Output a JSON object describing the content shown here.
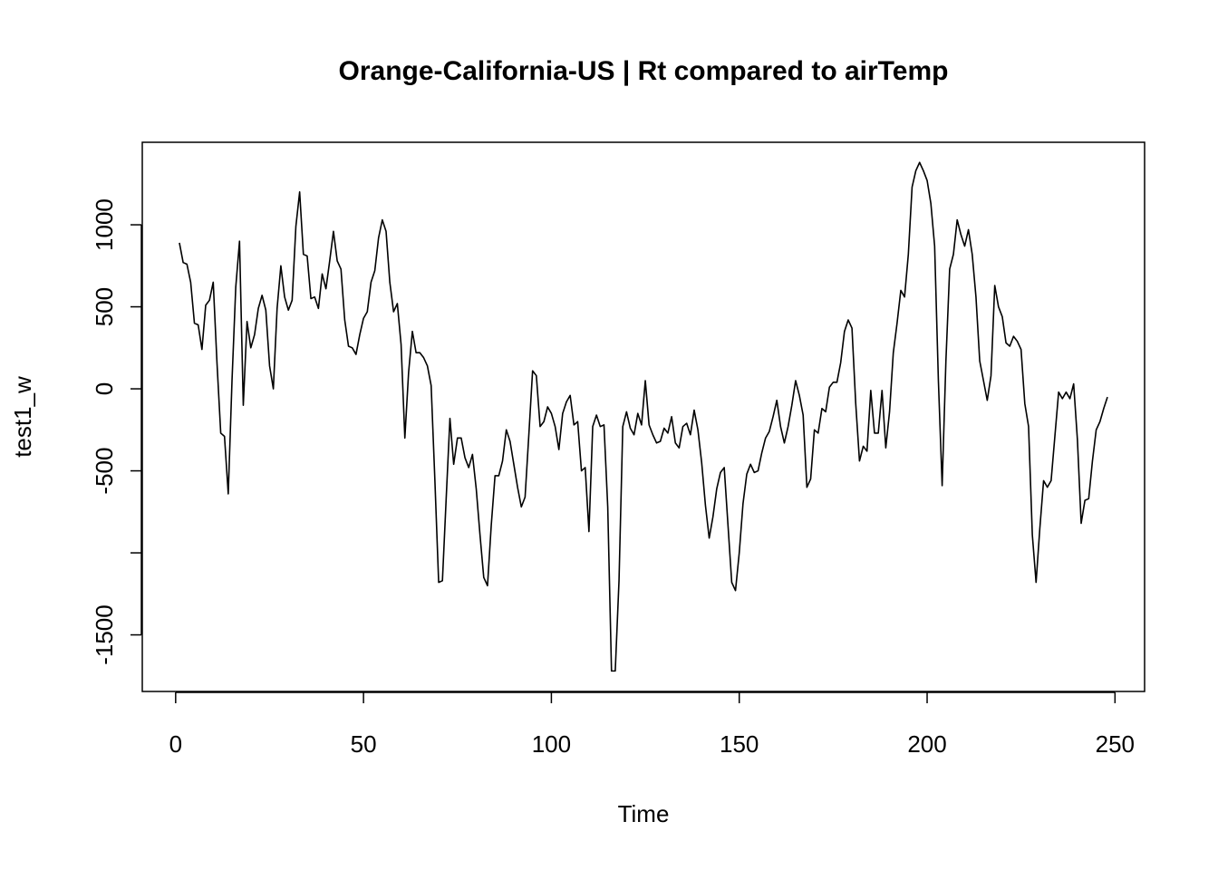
{
  "chart_data": {
    "type": "line",
    "title": "Orange-California-US | Rt compared to airTemp",
    "xlabel": "Time",
    "ylabel": "test1_w",
    "color": "#000000",
    "xlim": [
      -8.88,
      257.88
    ],
    "ylim": [
      -1845,
      1503
    ],
    "xticks": [
      0,
      50,
      100,
      150,
      200,
      250
    ],
    "yticks": [
      1000,
      500,
      0,
      -500,
      {
        "value": -1000,
        "label": null
      },
      -1500
    ],
    "x": [
      1,
      2,
      3,
      4,
      5,
      6,
      7,
      8,
      9,
      10,
      11,
      12,
      13,
      14,
      15,
      16,
      17,
      18,
      19,
      20,
      21,
      22,
      23,
      24,
      25,
      26,
      27,
      28,
      29,
      30,
      31,
      32,
      33,
      34,
      35,
      36,
      37,
      38,
      39,
      40,
      41,
      42,
      43,
      44,
      45,
      46,
      47,
      48,
      49,
      50,
      51,
      52,
      53,
      54,
      55,
      56,
      57,
      58,
      59,
      60,
      61,
      62,
      63,
      64,
      65,
      66,
      67,
      68,
      69,
      70,
      71,
      72,
      73,
      74,
      75,
      76,
      77,
      78,
      79,
      80,
      81,
      82,
      83,
      84,
      85,
      86,
      87,
      88,
      89,
      90,
      91,
      92,
      93,
      94,
      95,
      96,
      97,
      98,
      99,
      100,
      101,
      102,
      103,
      104,
      105,
      106,
      107,
      108,
      109,
      110,
      111,
      112,
      113,
      114,
      115,
      116,
      117,
      118,
      119,
      120,
      121,
      122,
      123,
      124,
      125,
      126,
      127,
      128,
      129,
      130,
      131,
      132,
      133,
      134,
      135,
      136,
      137,
      138,
      139,
      140,
      141,
      142,
      143,
      144,
      145,
      146,
      147,
      148,
      149,
      150,
      151,
      152,
      153,
      154,
      155,
      156,
      157,
      158,
      159,
      160,
      161,
      162,
      163,
      164,
      165,
      166,
      167,
      168,
      169,
      170,
      171,
      172,
      173,
      174,
      175,
      176,
      177,
      178,
      179,
      180,
      181,
      182,
      183,
      184,
      185,
      186,
      187,
      188,
      189,
      190,
      191,
      192,
      193,
      194,
      195,
      196,
      197,
      198,
      199,
      200,
      201,
      202,
      203,
      204,
      205,
      206,
      207,
      208,
      209,
      210,
      211,
      212,
      213,
      214,
      215,
      216,
      217,
      218,
      219,
      220,
      221,
      222,
      223,
      224,
      225,
      226,
      227,
      228,
      229,
      230,
      231,
      232,
      233,
      234,
      235,
      236,
      237,
      238,
      239,
      240,
      241,
      242,
      243,
      244,
      245,
      246,
      247,
      248
    ],
    "values": [
      890,
      770,
      760,
      650,
      400,
      390,
      240,
      510,
      540,
      650,
      160,
      -270,
      -290,
      -640,
      50,
      620,
      900,
      -100,
      410,
      250,
      330,
      490,
      570,
      480,
      140,
      0,
      490,
      750,
      560,
      480,
      540,
      990,
      1200,
      820,
      810,
      550,
      560,
      490,
      700,
      610,
      780,
      960,
      780,
      730,
      420,
      260,
      250,
      210,
      330,
      430,
      470,
      650,
      720,
      920,
      1030,
      960,
      650,
      470,
      520,
      270,
      -300,
      100,
      350,
      220,
      220,
      190,
      140,
      20,
      -560,
      -1180,
      -1170,
      -670,
      -180,
      -460,
      -300,
      -300,
      -420,
      -480,
      -400,
      -610,
      -890,
      -1150,
      -1200,
      -830,
      -530,
      -530,
      -440,
      -250,
      -320,
      -460,
      -600,
      -720,
      -660,
      -280,
      110,
      80,
      -230,
      -200,
      -110,
      -150,
      -230,
      -370,
      -150,
      -80,
      -40,
      -220,
      -200,
      -500,
      -480,
      -870,
      -230,
      -160,
      -230,
      -220,
      -720,
      -1720,
      -1720,
      -1170,
      -230,
      -140,
      -240,
      -280,
      -150,
      -220,
      50,
      -220,
      -280,
      -330,
      -320,
      -240,
      -270,
      -170,
      -330,
      -360,
      -230,
      -210,
      -280,
      -130,
      -250,
      -450,
      -710,
      -910,
      -780,
      -610,
      -510,
      -480,
      -830,
      -1180,
      -1230,
      -1000,
      -700,
      -520,
      -460,
      -510,
      -500,
      -390,
      -300,
      -260,
      -170,
      -70,
      -230,
      -330,
      -230,
      -100,
      50,
      -40,
      -160,
      -600,
      -550,
      -250,
      -270,
      -120,
      -140,
      10,
      40,
      40,
      160,
      350,
      420,
      370,
      -90,
      -440,
      -350,
      -380,
      -10,
      -270,
      -270,
      -10,
      -360,
      -140,
      220,
      400,
      600,
      560,
      820,
      1230,
      1330,
      1380,
      1330,
      1270,
      1130,
      870,
      50,
      -590,
      170,
      730,
      820,
      1030,
      940,
      870,
      970,
      820,
      560,
      170,
      50,
      -70,
      80,
      630,
      500,
      440,
      280,
      260,
      320,
      290,
      240,
      -90,
      -230,
      -890,
      -1180,
      -850,
      -560,
      -600,
      -560,
      -290,
      -20,
      -60,
      -20,
      -60,
      30,
      -310,
      -820,
      -680,
      -670,
      -440,
      -250,
      -200,
      -120,
      -50
    ]
  }
}
